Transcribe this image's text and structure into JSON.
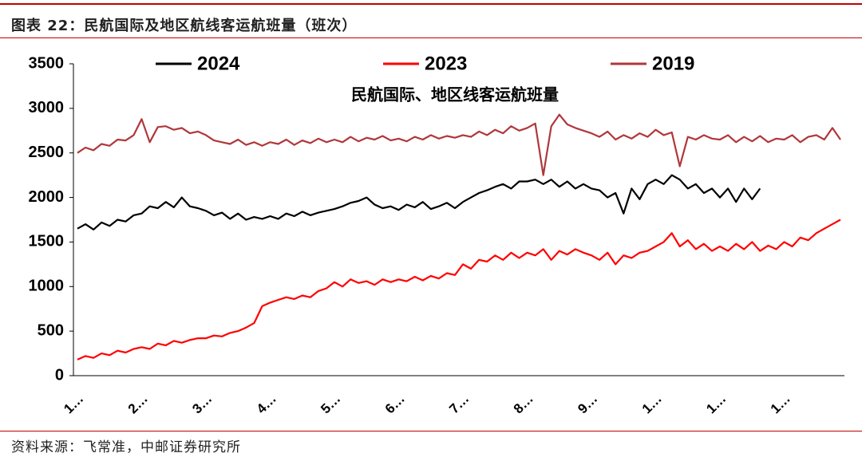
{
  "header": {
    "title": "图表 22：民航国际及地区航线客运航班量（班次）"
  },
  "footer": {
    "source": "资料来源：飞常准，中邮证券研究所"
  },
  "chart_data": {
    "type": "line",
    "title": "民航国际、地区线客运航班量",
    "legend": "top",
    "categories": [
      "1…",
      null,
      null,
      null,
      null,
      null,
      null,
      null,
      "2…",
      null,
      null,
      null,
      null,
      null,
      null,
      null,
      "3…",
      null,
      null,
      null,
      null,
      null,
      null,
      null,
      "4…",
      null,
      null,
      null,
      null,
      null,
      null,
      null,
      "5…",
      null,
      null,
      null,
      null,
      null,
      null,
      null,
      "6…",
      null,
      null,
      null,
      null,
      null,
      null,
      null,
      "7…",
      null,
      null,
      null,
      null,
      null,
      null,
      null,
      "8…",
      null,
      null,
      null,
      null,
      null,
      null,
      null,
      "9…",
      null,
      null,
      null,
      null,
      null,
      null,
      null,
      "1…",
      null,
      null,
      null,
      null,
      null,
      null,
      null,
      "1…",
      null,
      null,
      null,
      null,
      null,
      null,
      null,
      "1…",
      null,
      null,
      null,
      null,
      null,
      null,
      null
    ],
    "ylim": [
      0,
      3500
    ],
    "yticks": [
      0,
      500,
      1000,
      1500,
      2000,
      2500,
      3000,
      3500
    ],
    "series": [
      {
        "name": "2024",
        "color": "#000000",
        "values": [
          1650,
          1700,
          1640,
          1720,
          1680,
          1750,
          1730,
          1800,
          1820,
          1900,
          1880,
          1950,
          1890,
          2000,
          1900,
          1880,
          1850,
          1800,
          1830,
          1760,
          1820,
          1750,
          1780,
          1760,
          1790,
          1760,
          1820,
          1790,
          1840,
          1800,
          1830,
          1850,
          1870,
          1900,
          1940,
          1960,
          2000,
          1920,
          1880,
          1900,
          1860,
          1920,
          1890,
          1950,
          1870,
          1900,
          1940,
          1880,
          1950,
          2000,
          2050,
          2080,
          2120,
          2150,
          2100,
          2180,
          2180,
          2200,
          2150,
          2200,
          2120,
          2180,
          2100,
          2150,
          2100,
          2080,
          2000,
          2050,
          1820,
          2100,
          1980,
          2150,
          2200,
          2150,
          2250,
          2200,
          2100,
          2150,
          2050,
          2100,
          2000,
          2100,
          1950,
          2100,
          1980,
          2100,
          null,
          null,
          null,
          null,
          null,
          null,
          null,
          null,
          null,
          null
        ]
      },
      {
        "name": "2023",
        "color": "#ff0000",
        "values": [
          180,
          220,
          200,
          250,
          230,
          280,
          260,
          300,
          320,
          300,
          360,
          340,
          390,
          370,
          400,
          420,
          420,
          450,
          440,
          480,
          500,
          540,
          590,
          780,
          820,
          850,
          880,
          860,
          900,
          880,
          950,
          980,
          1050,
          1000,
          1080,
          1040,
          1060,
          1020,
          1080,
          1050,
          1080,
          1060,
          1110,
          1070,
          1120,
          1090,
          1150,
          1130,
          1250,
          1200,
          1300,
          1280,
          1350,
          1300,
          1380,
          1320,
          1380,
          1350,
          1420,
          1300,
          1400,
          1360,
          1420,
          1380,
          1350,
          1300,
          1380,
          1250,
          1350,
          1320,
          1380,
          1400,
          1450,
          1500,
          1600,
          1450,
          1520,
          1420,
          1480,
          1400,
          1450,
          1400,
          1480,
          1420,
          1500,
          1400,
          1460,
          1420,
          1500,
          1450,
          1550,
          1520,
          1600,
          1650,
          1700,
          1750
        ]
      },
      {
        "name": "2019",
        "color": "#b0373b",
        "values": [
          2500,
          2560,
          2530,
          2600,
          2580,
          2650,
          2640,
          2700,
          2880,
          2620,
          2790,
          2800,
          2760,
          2780,
          2720,
          2740,
          2700,
          2640,
          2620,
          2600,
          2650,
          2590,
          2620,
          2580,
          2620,
          2600,
          2650,
          2590,
          2640,
          2610,
          2660,
          2620,
          2650,
          2620,
          2680,
          2630,
          2670,
          2650,
          2690,
          2640,
          2660,
          2630,
          2680,
          2650,
          2700,
          2660,
          2690,
          2670,
          2700,
          2680,
          2740,
          2700,
          2760,
          2720,
          2800,
          2750,
          2780,
          2830,
          2250,
          2800,
          2930,
          2820,
          2780,
          2750,
          2720,
          2680,
          2740,
          2650,
          2700,
          2660,
          2720,
          2680,
          2760,
          2700,
          2730,
          2350,
          2680,
          2650,
          2700,
          2660,
          2650,
          2700,
          2620,
          2680,
          2630,
          2690,
          2620,
          2660,
          2650,
          2700,
          2620,
          2680,
          2700,
          2650,
          2780,
          2650
        ]
      }
    ]
  }
}
